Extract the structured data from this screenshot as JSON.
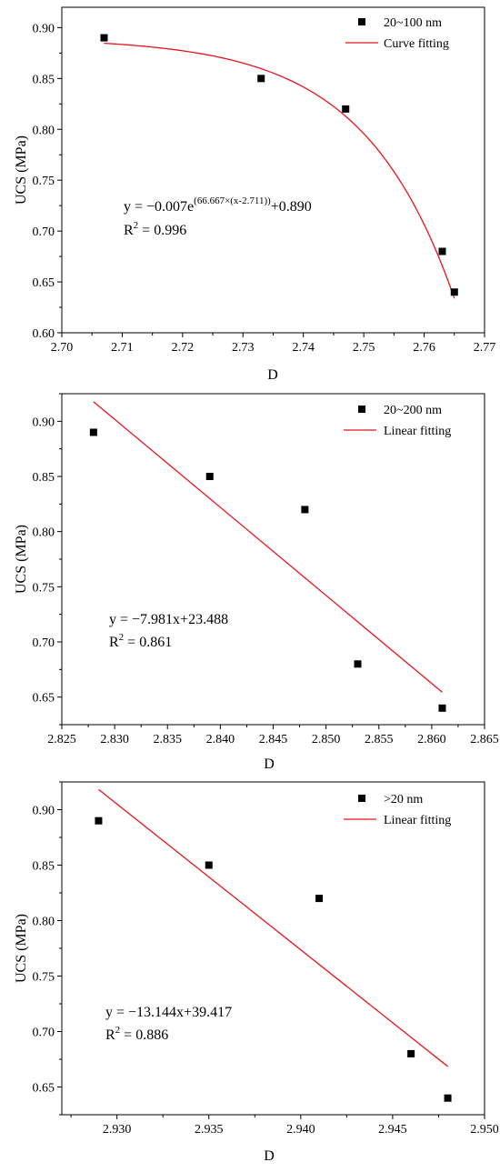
{
  "colors": {
    "points": "#000000",
    "fit": "#e8141b",
    "axis": "#000000",
    "background": "#ffffff"
  },
  "chart_data": [
    {
      "type": "scatter",
      "xlabel": "D",
      "ylabel": "UCS (MPa)",
      "xlim": [
        2.7,
        2.77
      ],
      "ylim": [
        0.6,
        0.92
      ],
      "xticks": [
        "2.70",
        "2.71",
        "2.72",
        "2.73",
        "2.74",
        "2.75",
        "2.76",
        "2.77"
      ],
      "yticks": [
        "0.60",
        "0.65",
        "0.70",
        "0.75",
        "0.80",
        "0.85",
        "0.90"
      ],
      "grid": false,
      "legend_position": "top-right",
      "series": [
        {
          "name": "20~100 nm",
          "kind": "scatter",
          "marker": "square",
          "x": [
            2.707,
            2.733,
            2.747,
            2.763,
            2.765
          ],
          "y": [
            0.89,
            0.85,
            0.82,
            0.68,
            0.64
          ]
        },
        {
          "name": "Curve fitting",
          "kind": "line",
          "fit": "exp",
          "x_range": [
            2.707,
            2.765
          ],
          "params": {
            "a": -0.007,
            "b": 66.667,
            "c": 2.711,
            "d": 0.89
          }
        }
      ],
      "equation": {
        "main": "y = −0.007e",
        "superscript": "(66.667×(x-2.711))",
        "tail": "+0.890",
        "r2_label": "R",
        "r2_value": " = 0.996"
      }
    },
    {
      "type": "scatter",
      "xlabel": "D",
      "ylabel": "UCS (MPa)",
      "xlim": [
        2.825,
        2.865
      ],
      "ylim": [
        0.625,
        0.925
      ],
      "xticks": [
        "2.825",
        "2.830",
        "2.835",
        "2.840",
        "2.845",
        "2.850",
        "2.855",
        "2.860",
        "2.865"
      ],
      "yticks": [
        "0.65",
        "0.70",
        "0.75",
        "0.80",
        "0.85",
        "0.90"
      ],
      "grid": false,
      "legend_position": "top-right",
      "series": [
        {
          "name": "20~200 nm",
          "kind": "scatter",
          "marker": "square",
          "x": [
            2.828,
            2.839,
            2.848,
            2.853,
            2.861
          ],
          "y": [
            0.89,
            0.85,
            0.82,
            0.68,
            0.64
          ]
        },
        {
          "name": "Linear fitting",
          "kind": "line",
          "fit": "linear",
          "x_range": [
            2.828,
            2.861
          ],
          "params": {
            "slope": -7.981,
            "intercept": 23.488
          }
        }
      ],
      "equation": {
        "main": "y = −7.981x+23.488",
        "superscript": "",
        "tail": "",
        "r2_label": "R",
        "r2_value": " = 0.861"
      }
    },
    {
      "type": "scatter",
      "xlabel": "D",
      "ylabel": "UCS (MPa)",
      "xlim": [
        2.927,
        2.95
      ],
      "ylim": [
        0.625,
        0.925
      ],
      "xticks": [
        "2.930",
        "2.935",
        "2.940",
        "2.945",
        "2.950"
      ],
      "yticks": [
        "0.65",
        "0.70",
        "0.75",
        "0.80",
        "0.85",
        "0.90"
      ],
      "grid": false,
      "legend_position": "top-right",
      "series": [
        {
          "name": ">20 nm",
          "kind": "scatter",
          "marker": "square",
          "x": [
            2.929,
            2.935,
            2.941,
            2.946,
            2.948
          ],
          "y": [
            0.89,
            0.85,
            0.82,
            0.68,
            0.64
          ]
        },
        {
          "name": "Linear fitting",
          "kind": "line",
          "fit": "linear",
          "x_range": [
            2.929,
            2.948
          ],
          "params": {
            "slope": -13.144,
            "intercept": 39.417
          }
        }
      ],
      "equation": {
        "main": "y = −13.144x+39.417",
        "superscript": "",
        "tail": "",
        "r2_label": "R",
        "r2_value": " = 0.886"
      }
    }
  ]
}
